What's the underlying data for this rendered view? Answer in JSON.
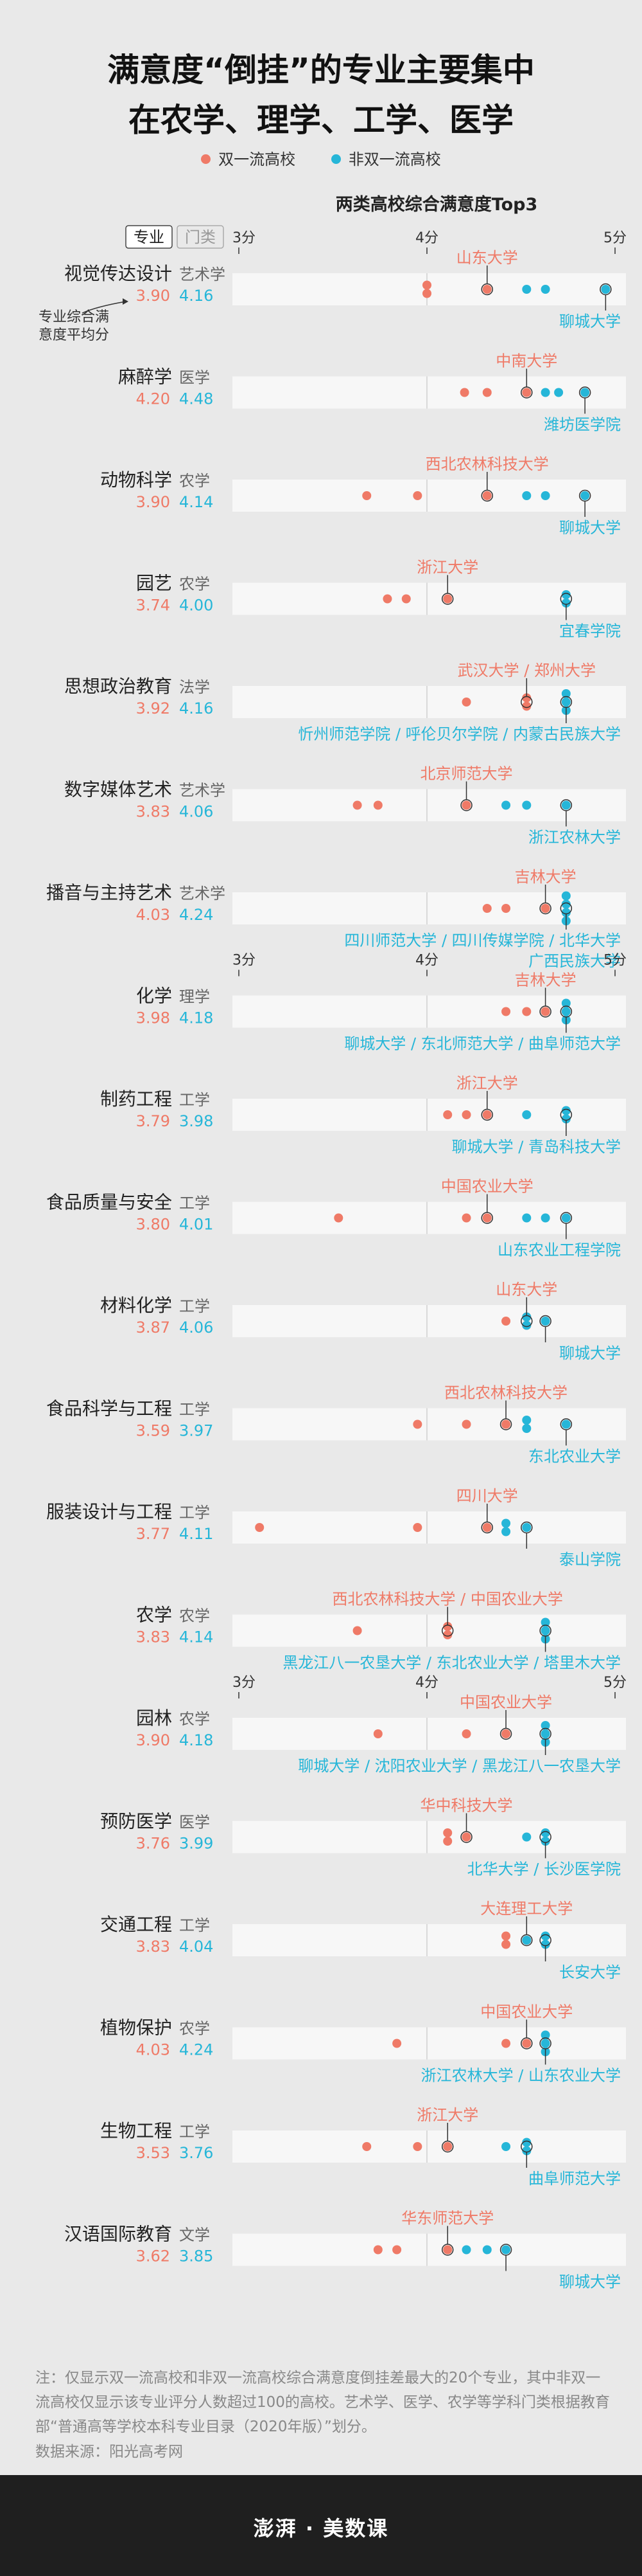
{
  "title_lines": [
    "满意度“倒挂”的专业主要集中",
    "在农学、理学、工学、医学"
  ],
  "legend": {
    "shuang": {
      "label": "双一流高校",
      "color": "#ef7a67"
    },
    "fei": {
      "label": "非双一流高校",
      "color": "#26b6d8"
    }
  },
  "subtitle": "两类高校综合满意度Top3",
  "header": {
    "major_label": "专业",
    "category_label": "门类"
  },
  "annotation": "专业综合满\n意度平均分",
  "axis": {
    "min": 3,
    "max": 5,
    "ticks": [
      {
        "value": 3,
        "label": "3分"
      },
      {
        "value": 4,
        "label": "4分"
      },
      {
        "value": 5,
        "label": "5分"
      }
    ]
  },
  "chart_data": {
    "type": "scatter",
    "title": "两类高校综合满意度Top3",
    "xlim": [
      3,
      5
    ],
    "x_ticks": [
      "3分",
      "4分",
      "5分"
    ],
    "series": [
      {
        "name": "双一流高校"
      },
      {
        "name": "非双一流高校"
      }
    ],
    "majors": [
      {
        "name": "视觉传达设计",
        "category": "艺术学",
        "avg_shuang": "3.90",
        "avg_fei": "4.16",
        "shuang": [
          4.0,
          4.0,
          4.32
        ],
        "fei": [
          4.53,
          4.63,
          4.95
        ],
        "top_label": "山东大学",
        "bottom_label": "聊城大学"
      },
      {
        "name": "麻醉学",
        "category": "医学",
        "avg_shuang": "4.20",
        "avg_fei": "4.48",
        "shuang": [
          4.2,
          4.32,
          4.53
        ],
        "fei": [
          4.63,
          4.7,
          4.84
        ],
        "top_label": "中南大学",
        "bottom_label": "潍坊医学院"
      },
      {
        "name": "动物科学",
        "category": "农学",
        "avg_shuang": "3.90",
        "avg_fei": "4.14",
        "shuang": [
          3.68,
          3.95,
          4.32
        ],
        "fei": [
          4.53,
          4.63,
          4.84
        ],
        "top_label": "西北农林科技大学",
        "bottom_label": "聊城大学"
      },
      {
        "name": "园艺",
        "category": "农学",
        "avg_shuang": "3.74",
        "avg_fei": "4.00",
        "shuang": [
          3.79,
          3.89,
          4.11
        ],
        "fei": [
          4.74,
          4.74
        ],
        "top_label": "浙江大学",
        "bottom_label": "宜春学院"
      },
      {
        "name": "思想政治教育",
        "category": "法学",
        "avg_shuang": "3.92",
        "avg_fei": "4.16",
        "shuang": [
          4.21,
          4.53,
          4.53
        ],
        "fei": [
          4.74,
          4.74,
          4.74
        ],
        "top_label": "武汉大学 / 郑州大学",
        "bottom_label": "忻州师范学院 / 呼伦贝尔学院 / 内蒙古民族大学"
      },
      {
        "name": "数字媒体艺术",
        "category": "艺术学",
        "avg_shuang": "3.83",
        "avg_fei": "4.06",
        "shuang": [
          3.63,
          3.74,
          4.21
        ],
        "fei": [
          4.42,
          4.53,
          4.74
        ],
        "top_label": "北京师范大学",
        "bottom_label": "浙江农林大学"
      },
      {
        "name": "播音与主持艺术",
        "category": "艺术学",
        "avg_shuang": "4.03",
        "avg_fei": "4.24",
        "shuang": [
          4.32,
          4.42,
          4.63
        ],
        "fei": [
          4.74,
          4.74,
          4.74,
          4.74
        ],
        "top_label": "吉林大学",
        "bottom_label": "四川师范大学 / 四川传媒学院 / 北华大学",
        "bottom_label2": "广西民族大学"
      },
      {
        "name": "化学",
        "category": "理学",
        "avg_shuang": "3.98",
        "avg_fei": "4.18",
        "shuang": [
          4.42,
          4.53,
          4.63
        ],
        "fei": [
          4.74,
          4.74,
          4.74
        ],
        "top_label": "吉林大学",
        "bottom_label": "聊城大学 / 东北师范大学 / 曲阜师范大学"
      },
      {
        "name": "制药工程",
        "category": "工学",
        "avg_shuang": "3.79",
        "avg_fei": "3.98",
        "shuang": [
          4.11,
          4.21,
          4.32
        ],
        "fei": [
          4.53,
          4.74,
          4.74
        ],
        "top_label": "浙江大学",
        "bottom_label": "聊城大学 / 青岛科技大学"
      },
      {
        "name": "食品质量与安全",
        "category": "工学",
        "avg_shuang": "3.80",
        "avg_fei": "4.01",
        "shuang": [
          3.53,
          4.21,
          4.32
        ],
        "fei": [
          4.53,
          4.63,
          4.74
        ],
        "top_label": "中国农业大学",
        "bottom_label": "山东农业工程学院"
      },
      {
        "name": "材料化学",
        "category": "工学",
        "avg_shuang": "3.87",
        "avg_fei": "4.06",
        "shuang": [
          4.42,
          4.53,
          4.53
        ],
        "fei": [
          4.53,
          4.53,
          4.63
        ],
        "top_label": "山东大学",
        "bottom_label": "聊城大学"
      },
      {
        "name": "食品科学与工程",
        "category": "工学",
        "avg_shuang": "3.59",
        "avg_fei": "3.97",
        "shuang": [
          3.95,
          4.21,
          4.42
        ],
        "fei": [
          4.53,
          4.53,
          4.74
        ],
        "top_label": "西北农林科技大学",
        "bottom_label": "东北农业大学"
      },
      {
        "name": "服装设计与工程",
        "category": "工学",
        "avg_shuang": "3.77",
        "avg_fei": "4.11",
        "shuang": [
          3.11,
          3.95,
          4.32
        ],
        "fei": [
          4.42,
          4.42,
          4.53
        ],
        "top_label": "四川大学",
        "bottom_label": "泰山学院"
      },
      {
        "name": "农学",
        "category": "农学",
        "avg_shuang": "3.83",
        "avg_fei": "4.14",
        "shuang": [
          3.63,
          4.11,
          4.11
        ],
        "fei": [
          4.63,
          4.63,
          4.63
        ],
        "top_label": "西北农林科技大学 / 中国农业大学",
        "bottom_label": "黑龙江八一农垦大学 / 东北农业大学 / 塔里木大学"
      },
      {
        "name": "园林",
        "category": "农学",
        "avg_shuang": "3.90",
        "avg_fei": "4.18",
        "shuang": [
          3.74,
          4.21,
          4.42
        ],
        "fei": [
          4.63,
          4.63,
          4.63
        ],
        "top_label": "中国农业大学",
        "bottom_label": "聊城大学 / 沈阳农业大学 / 黑龙江八一农垦大学"
      },
      {
        "name": "预防医学",
        "category": "医学",
        "avg_shuang": "3.76",
        "avg_fei": "3.99",
        "shuang": [
          4.11,
          4.11,
          4.21
        ],
        "fei": [
          4.53,
          4.63,
          4.63
        ],
        "top_label": "华中科技大学",
        "bottom_label": "北华大学 / 长沙医学院"
      },
      {
        "name": "交通工程",
        "category": "工学",
        "avg_shuang": "3.83",
        "avg_fei": "4.04",
        "shuang": [
          4.42,
          4.42,
          4.53
        ],
        "fei": [
          4.53,
          4.63,
          4.63
        ],
        "top_label": "大连理工大学",
        "bottom_label": "长安大学"
      },
      {
        "name": "植物保护",
        "category": "农学",
        "avg_shuang": "4.03",
        "avg_fei": "4.24",
        "shuang": [
          3.84,
          4.42,
          4.53
        ],
        "fei": [
          4.63,
          4.63,
          4.63
        ],
        "top_label": "中国农业大学",
        "bottom_label": "浙江农林大学 / 山东农业大学"
      },
      {
        "name": "生物工程",
        "category": "工学",
        "avg_shuang": "3.53",
        "avg_fei": "3.76",
        "shuang": [
          3.68,
          3.95,
          4.11
        ],
        "fei": [
          4.42,
          4.53,
          4.53
        ],
        "top_label": "浙江大学",
        "bottom_label": "曲阜师范大学"
      },
      {
        "name": "汉语国际教育",
        "category": "文学",
        "avg_shuang": "3.62",
        "avg_fei": "3.85",
        "shuang": [
          3.74,
          3.84,
          4.11
        ],
        "fei": [
          4.21,
          4.32,
          4.42
        ],
        "top_label": "华东师范大学",
        "bottom_label": "聊城大学"
      }
    ]
  },
  "note": "注：仅显示双一流高校和非双一流高校综合满意度倒挂差最大的20个专业，其中非双一流高校仅显示该专业评分人数超过100的高校。艺术学、医学、农学等学科门类根据教育部“普通高等学校本科专业目录（2020年版）”划分。",
  "source": "数据来源：阳光高考网",
  "brand": "澎湃 · 美数课"
}
